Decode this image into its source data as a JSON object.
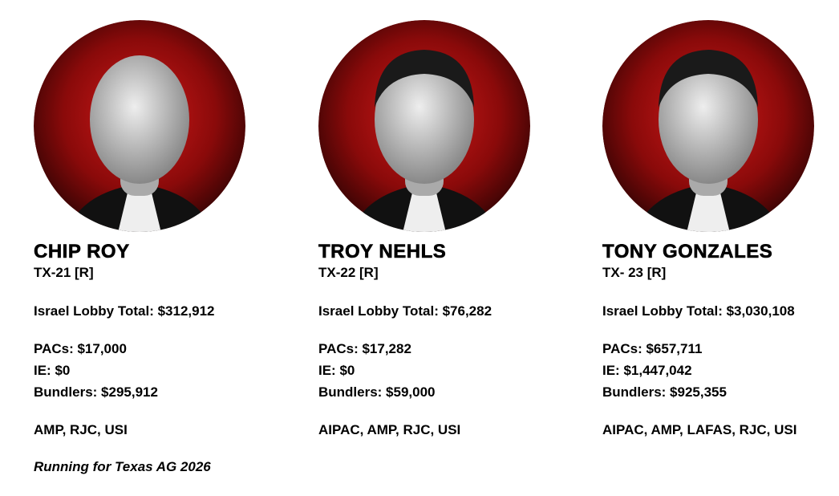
{
  "cards": [
    {
      "name": "CHIP ROY",
      "district": "TX-21 [R]",
      "total": "Israel Lobby Total: $312,912",
      "pacs": "PACs: $17,000",
      "ie": "IE: $0",
      "bundlers": "Bundlers: $295,912",
      "groups": "AMP, RJC, USI",
      "note": "Running for Texas AG 2026"
    },
    {
      "name": "TROY NEHLS",
      "district": "TX-22 [R]",
      "total": "Israel Lobby Total: $76,282",
      "pacs": "PACs: $17,282",
      "ie": "IE: $0",
      "bundlers": "Bundlers: $59,000",
      "groups": "AIPAC, AMP, RJC, USI"
    },
    {
      "name": "TONY GONZALES",
      "district": "TX- 23 [R]",
      "total": "Israel Lobby Total: $3,030,108",
      "pacs": "PACs: $657,711",
      "ie": "IE: $1,447,042",
      "bundlers": "Bundlers: $925,355",
      "groups": "AIPAC, AMP, LAFAS, RJC, USI"
    }
  ]
}
